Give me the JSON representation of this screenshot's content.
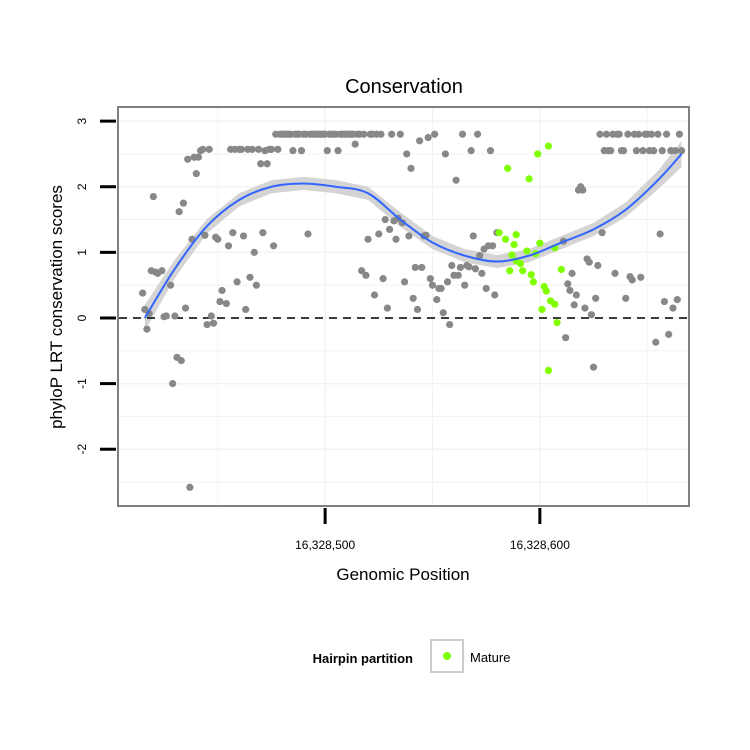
{
  "chart_data": {
    "type": "scatter",
    "title": "Conservation",
    "xlabel": "Genomic Position",
    "ylabel": "phyloP LRT conservation scores",
    "xlim": [
      16328404,
      16328669
    ],
    "ylim": [
      -2.85,
      3.2
    ],
    "x_ticks": [
      {
        "value": 16328500,
        "label": "16,328,500"
      },
      {
        "value": 16328600,
        "label": "16,328,600"
      }
    ],
    "y_ticks": [
      {
        "value": -2,
        "label": "-2"
      },
      {
        "value": -1,
        "label": "-1"
      },
      {
        "value": 0,
        "label": "0"
      },
      {
        "value": 1,
        "label": "1"
      },
      {
        "value": 2,
        "label": "2"
      },
      {
        "value": 3,
        "label": "3"
      }
    ],
    "reference_line": {
      "y": 0,
      "style": "dashed"
    },
    "grid": true,
    "legend": {
      "title": "Hairpin partition",
      "position": "bottom",
      "entries": [
        {
          "label": "Mature",
          "color": "#7fff00"
        }
      ]
    },
    "colors": {
      "background_point": "#888888",
      "mature_point": "#7fff00",
      "smooth_line": "#3366ff",
      "confidence_band": "#cccccc",
      "panel_border": "#7f7f7f",
      "grid": "#f2f2f2"
    },
    "smooth": {
      "x": [
        16328416,
        16328430,
        16328445,
        16328460,
        16328475,
        16328490,
        16328505,
        16328520,
        16328535,
        16328550,
        16328565,
        16328580,
        16328595,
        16328610,
        16328625,
        16328640,
        16328655,
        16328666
      ],
      "y": [
        0.0,
        0.75,
        1.4,
        1.8,
        2.0,
        2.05,
        2.0,
        1.9,
        1.5,
        1.15,
        0.95,
        0.86,
        0.95,
        1.15,
        1.35,
        1.65,
        2.1,
        2.5
      ],
      "ci_half_width": [
        0.2,
        0.14,
        0.11,
        0.1,
        0.1,
        0.1,
        0.1,
        0.1,
        0.11,
        0.1,
        0.1,
        0.1,
        0.1,
        0.1,
        0.1,
        0.11,
        0.14,
        0.2
      ]
    },
    "series": [
      {
        "name": "Mature",
        "color": "#7fff00",
        "points": [
          [
            16328585,
            2.28
          ],
          [
            16328588,
            1.12
          ],
          [
            16328595,
            2.12
          ],
          [
            16328599,
            2.5
          ],
          [
            16328604,
            2.62
          ],
          [
            16328607,
            1.07
          ],
          [
            16328610,
            0.74
          ],
          [
            16328586,
            0.72
          ],
          [
            16328581,
            1.3
          ],
          [
            16328584,
            1.2
          ],
          [
            16328587,
            0.96
          ],
          [
            16328589,
            1.27
          ],
          [
            16328591,
            0.83
          ],
          [
            16328594,
            1.02
          ],
          [
            16328596,
            0.66
          ],
          [
            16328598,
            0.98
          ],
          [
            16328600,
            1.14
          ],
          [
            16328602,
            0.48
          ],
          [
            16328603,
            0.41
          ],
          [
            16328605,
            0.26
          ],
          [
            16328607,
            0.21
          ],
          [
            16328608,
            -0.07
          ],
          [
            16328601,
            0.13
          ],
          [
            16328604,
            -0.8
          ],
          [
            16328597,
            0.55
          ],
          [
            16328592,
            0.72
          ],
          [
            16328589,
            0.87
          ]
        ]
      },
      {
        "name": "",
        "color": "#888888",
        "points": [
          [
            16328415,
            0.38
          ],
          [
            16328416,
            0.13
          ],
          [
            16328417,
            -0.17
          ],
          [
            16328418,
            0.07
          ],
          [
            16328419,
            0.72
          ],
          [
            16328420,
            1.85
          ],
          [
            16328421,
            0.7
          ],
          [
            16328422,
            0.68
          ],
          [
            16328424,
            0.72
          ],
          [
            16328425,
            0.02
          ],
          [
            16328426,
            0.03
          ],
          [
            16328428,
            0.5
          ],
          [
            16328429,
            -1.0
          ],
          [
            16328430,
            0.03
          ],
          [
            16328431,
            -0.6
          ],
          [
            16328432,
            1.62
          ],
          [
            16328433,
            -0.65
          ],
          [
            16328434,
            1.75
          ],
          [
            16328435,
            0.15
          ],
          [
            16328436,
            2.42
          ],
          [
            16328437,
            -2.58
          ],
          [
            16328438,
            1.2
          ],
          [
            16328439,
            2.45
          ],
          [
            16328440,
            2.2
          ],
          [
            16328441,
            2.45
          ],
          [
            16328442,
            2.55
          ],
          [
            16328443,
            2.57
          ],
          [
            16328444,
            1.26
          ],
          [
            16328445,
            -0.1
          ],
          [
            16328446,
            2.57
          ],
          [
            16328447,
            0.03
          ],
          [
            16328448,
            -0.08
          ],
          [
            16328449,
            1.23
          ],
          [
            16328450,
            1.2
          ],
          [
            16328451,
            0.25
          ],
          [
            16328452,
            0.42
          ],
          [
            16328454,
            0.22
          ],
          [
            16328455,
            1.1
          ],
          [
            16328456,
            2.57
          ],
          [
            16328457,
            1.3
          ],
          [
            16328458,
            2.57
          ],
          [
            16328459,
            0.55
          ],
          [
            16328460,
            2.57
          ],
          [
            16328461,
            2.57
          ],
          [
            16328462,
            1.25
          ],
          [
            16328463,
            0.13
          ],
          [
            16328464,
            2.57
          ],
          [
            16328465,
            0.62
          ],
          [
            16328466,
            2.57
          ],
          [
            16328467,
            1.0
          ],
          [
            16328468,
            0.5
          ],
          [
            16328469,
            2.57
          ],
          [
            16328470,
            2.35
          ],
          [
            16328471,
            1.3
          ],
          [
            16328472,
            2.55
          ],
          [
            16328473,
            2.35
          ],
          [
            16328474,
            2.57
          ],
          [
            16328475,
            2.57
          ],
          [
            16328476,
            1.1
          ],
          [
            16328477,
            2.8
          ],
          [
            16328478,
            2.57
          ],
          [
            16328479,
            2.8
          ],
          [
            16328480,
            2.8
          ],
          [
            16328481,
            2.8
          ],
          [
            16328482,
            2.8
          ],
          [
            16328483,
            2.8
          ],
          [
            16328484,
            2.8
          ],
          [
            16328485,
            2.55
          ],
          [
            16328486,
            2.8
          ],
          [
            16328487,
            2.8
          ],
          [
            16328488,
            2.8
          ],
          [
            16328489,
            2.55
          ],
          [
            16328490,
            2.8
          ],
          [
            16328491,
            2.8
          ],
          [
            16328492,
            1.28
          ],
          [
            16328493,
            2.8
          ],
          [
            16328494,
            2.8
          ],
          [
            16328495,
            2.8
          ],
          [
            16328496,
            2.8
          ],
          [
            16328497,
            2.8
          ],
          [
            16328498,
            2.8
          ],
          [
            16328499,
            2.8
          ],
          [
            16328500,
            2.8
          ],
          [
            16328501,
            2.55
          ],
          [
            16328502,
            2.8
          ],
          [
            16328503,
            2.8
          ],
          [
            16328504,
            2.8
          ],
          [
            16328505,
            2.8
          ],
          [
            16328506,
            2.55
          ],
          [
            16328507,
            2.8
          ],
          [
            16328508,
            2.8
          ],
          [
            16328509,
            2.8
          ],
          [
            16328510,
            2.8
          ],
          [
            16328511,
            2.8
          ],
          [
            16328512,
            2.8
          ],
          [
            16328513,
            2.8
          ],
          [
            16328514,
            2.65
          ],
          [
            16328515,
            2.8
          ],
          [
            16328516,
            2.8
          ],
          [
            16328517,
            0.72
          ],
          [
            16328518,
            2.8
          ],
          [
            16328519,
            0.65
          ],
          [
            16328520,
            1.2
          ],
          [
            16328521,
            2.8
          ],
          [
            16328522,
            2.8
          ],
          [
            16328523,
            0.35
          ],
          [
            16328524,
            2.8
          ],
          [
            16328525,
            1.28
          ],
          [
            16328526,
            2.8
          ],
          [
            16328527,
            0.6
          ],
          [
            16328528,
            1.5
          ],
          [
            16328529,
            0.15
          ],
          [
            16328530,
            1.35
          ],
          [
            16328531,
            2.8
          ],
          [
            16328532,
            1.48
          ],
          [
            16328533,
            1.2
          ],
          [
            16328534,
            1.52
          ],
          [
            16328535,
            2.8
          ],
          [
            16328536,
            1.45
          ],
          [
            16328537,
            0.55
          ],
          [
            16328538,
            2.5
          ],
          [
            16328539,
            1.25
          ],
          [
            16328540,
            2.28
          ],
          [
            16328541,
            0.3
          ],
          [
            16328542,
            0.77
          ],
          [
            16328543,
            0.13
          ],
          [
            16328544,
            2.7
          ],
          [
            16328545,
            0.77
          ],
          [
            16328546,
            1.25
          ],
          [
            16328547,
            1.26
          ],
          [
            16328548,
            2.75
          ],
          [
            16328549,
            0.6
          ],
          [
            16328550,
            0.5
          ],
          [
            16328551,
            2.8
          ],
          [
            16328552,
            0.28
          ],
          [
            16328553,
            0.45
          ],
          [
            16328554,
            0.45
          ],
          [
            16328555,
            0.08
          ],
          [
            16328556,
            2.5
          ],
          [
            16328557,
            0.55
          ],
          [
            16328558,
            -0.1
          ],
          [
            16328559,
            0.8
          ],
          [
            16328560,
            0.65
          ],
          [
            16328561,
            2.1
          ],
          [
            16328562,
            0.65
          ],
          [
            16328563,
            0.77
          ],
          [
            16328564,
            2.8
          ],
          [
            16328565,
            0.5
          ],
          [
            16328566,
            0.8
          ],
          [
            16328567,
            0.78
          ],
          [
            16328568,
            2.55
          ],
          [
            16328569,
            1.25
          ],
          [
            16328570,
            0.75
          ],
          [
            16328571,
            2.8
          ],
          [
            16328572,
            0.95
          ],
          [
            16328573,
            0.68
          ],
          [
            16328574,
            1.05
          ],
          [
            16328575,
            0.45
          ],
          [
            16328576,
            1.1
          ],
          [
            16328577,
            2.55
          ],
          [
            16328578,
            1.1
          ],
          [
            16328579,
            0.35
          ],
          [
            16328580,
            1.3
          ],
          [
            16328611,
            1.17
          ],
          [
            16328612,
            -0.3
          ],
          [
            16328613,
            0.52
          ],
          [
            16328614,
            0.42
          ],
          [
            16328615,
            0.68
          ],
          [
            16328616,
            0.2
          ],
          [
            16328617,
            0.35
          ],
          [
            16328618,
            1.95
          ],
          [
            16328619,
            2.0
          ],
          [
            16328620,
            1.95
          ],
          [
            16328621,
            0.15
          ],
          [
            16328622,
            0.9
          ],
          [
            16328623,
            0.85
          ],
          [
            16328624,
            0.05
          ],
          [
            16328625,
            -0.75
          ],
          [
            16328626,
            0.3
          ],
          [
            16328627,
            0.8
          ],
          [
            16328628,
            2.8
          ],
          [
            16328629,
            1.3
          ],
          [
            16328630,
            2.55
          ],
          [
            16328631,
            2.8
          ],
          [
            16328632,
            2.55
          ],
          [
            16328633,
            2.55
          ],
          [
            16328634,
            2.8
          ],
          [
            16328635,
            0.68
          ],
          [
            16328636,
            2.8
          ],
          [
            16328637,
            2.8
          ],
          [
            16328638,
            2.55
          ],
          [
            16328639,
            2.55
          ],
          [
            16328640,
            0.3
          ],
          [
            16328641,
            2.8
          ],
          [
            16328642,
            0.63
          ],
          [
            16328643,
            0.58
          ],
          [
            16328644,
            2.8
          ],
          [
            16328645,
            2.55
          ],
          [
            16328646,
            2.8
          ],
          [
            16328647,
            0.62
          ],
          [
            16328648,
            2.55
          ],
          [
            16328649,
            2.8
          ],
          [
            16328650,
            2.8
          ],
          [
            16328651,
            2.55
          ],
          [
            16328652,
            2.8
          ],
          [
            16328653,
            2.55
          ],
          [
            16328654,
            -0.37
          ],
          [
            16328655,
            2.8
          ],
          [
            16328656,
            1.28
          ],
          [
            16328657,
            2.55
          ],
          [
            16328658,
            0.25
          ],
          [
            16328659,
            2.8
          ],
          [
            16328660,
            -0.25
          ],
          [
            16328661,
            2.55
          ],
          [
            16328662,
            0.15
          ],
          [
            16328663,
            2.55
          ],
          [
            16328664,
            0.28
          ],
          [
            16328665,
            2.8
          ],
          [
            16328666,
            2.55
          ]
        ]
      }
    ]
  }
}
